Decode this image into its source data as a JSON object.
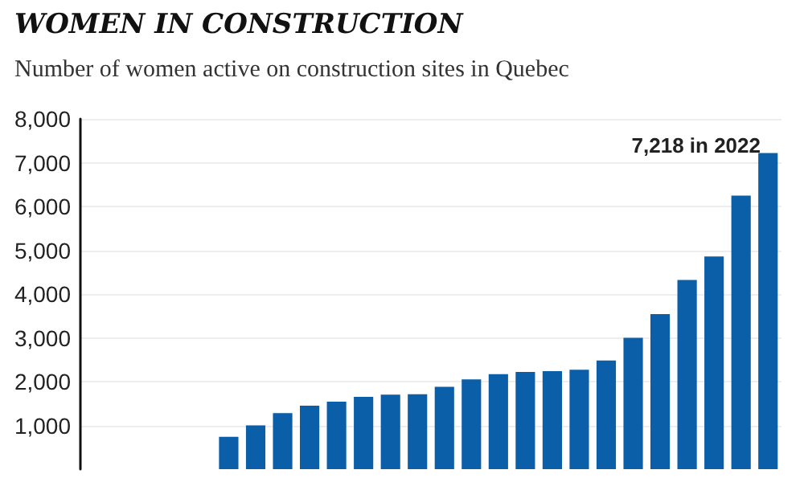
{
  "chart_data": {
    "type": "bar",
    "title": "WOMEN IN CONSTRUCTION",
    "subtitle": "Number of women active on construction sites in Quebec",
    "categories": [
      null,
      null,
      null,
      null,
      null,
      null,
      null,
      null,
      null,
      null,
      null,
      null,
      null,
      null,
      null,
      null,
      null,
      null,
      null,
      null,
      null,
      null,
      null,
      null,
      null,
      null
    ],
    "values": [
      null,
      null,
      null,
      null,
      null,
      740,
      1000,
      1280,
      1450,
      1540,
      1650,
      1700,
      1710,
      1880,
      2050,
      2170,
      2220,
      2240,
      2270,
      2480,
      3000,
      3540,
      4320,
      4860,
      6250,
      7218
    ],
    "annotations": [
      "7,218 in 2022"
    ],
    "color": "#0b5ea8",
    "ylim": [
      0,
      8000
    ],
    "yticks": [
      {
        "value": 1000,
        "label": "1,000"
      },
      {
        "value": 2000,
        "label": "2,000"
      },
      {
        "value": 3000,
        "label": "3,000"
      },
      {
        "value": 4000,
        "label": "4,000"
      },
      {
        "value": 5000,
        "label": "5,000"
      },
      {
        "value": 6000,
        "label": "6,000"
      },
      {
        "value": 7000,
        "label": "7,000"
      },
      {
        "value": 8000,
        "label": "8,000"
      }
    ],
    "grid": "y"
  }
}
